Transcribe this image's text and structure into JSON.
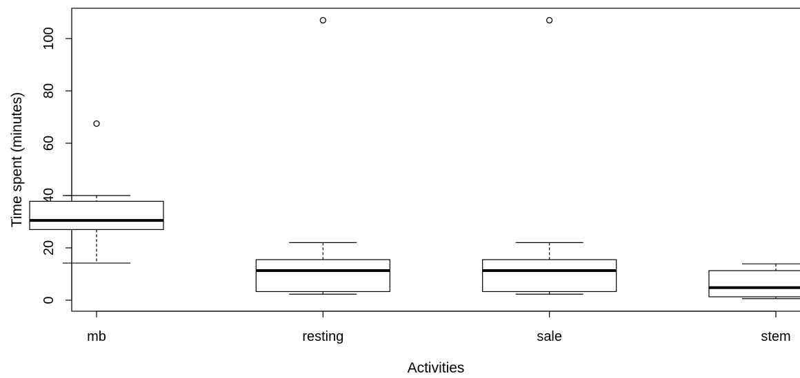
{
  "chart_data": {
    "type": "boxplot",
    "xlabel": "Activities",
    "ylabel": "Time spent (minutes)",
    "ylim": [
      -4,
      112
    ],
    "yticks": [
      0,
      20,
      40,
      60,
      80,
      100
    ],
    "grid": false,
    "categories": [
      "mb",
      "resting",
      "sale",
      "stem"
    ],
    "boxes": [
      {
        "category": "mb",
        "min": 14.2,
        "q1": 27.0,
        "median": 30.5,
        "q3": 37.8,
        "max": 40.0,
        "outliers": [
          67.5
        ]
      },
      {
        "category": "resting",
        "min": 2.3,
        "q1": 3.3,
        "median": 11.3,
        "q3": 15.5,
        "max": 22.0,
        "outliers": [
          107.0
        ]
      },
      {
        "category": "sale",
        "min": 2.3,
        "q1": 3.3,
        "median": 11.3,
        "q3": 15.5,
        "max": 22.0,
        "outliers": [
          107.0
        ]
      },
      {
        "category": "stem",
        "min": 0.6,
        "q1": 1.3,
        "median": 4.8,
        "q3": 11.3,
        "max": 13.9,
        "outliers": []
      }
    ]
  }
}
